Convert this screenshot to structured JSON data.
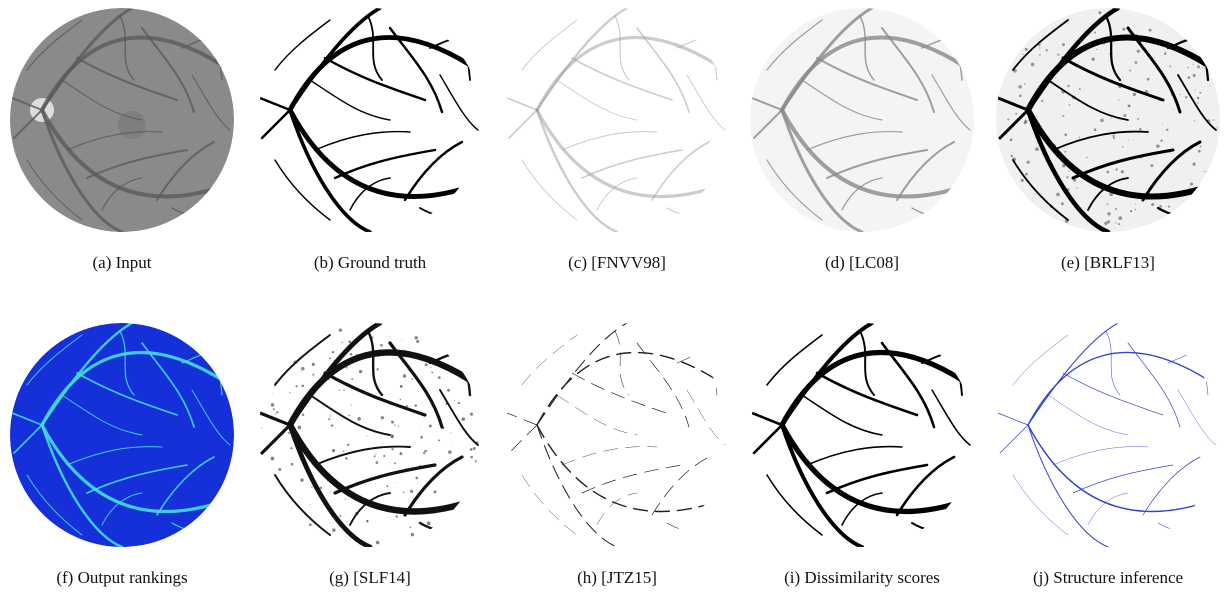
{
  "figure": {
    "captions": [
      "(a) Input",
      "(b) Ground truth",
      "(c) [FNVV98]",
      "(d) [LC08]",
      "(e) [BRLF13]",
      "(f) Output rankings",
      "(g) [SLF14]",
      "(h) [JTZ15]",
      "(i) Dissimilarity scores",
      "(j) Structure inference"
    ]
  }
}
